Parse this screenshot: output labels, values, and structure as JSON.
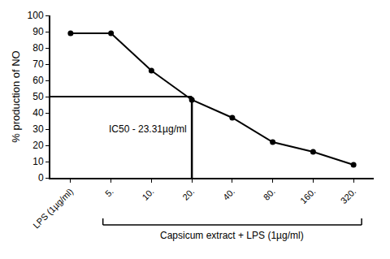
{
  "chart_data": {
    "type": "line",
    "categories": [
      "LPS (1µg/ml)",
      "5.",
      "10.",
      "20.",
      "40.",
      "80.",
      "160.",
      "320."
    ],
    "values": [
      89,
      89,
      66,
      48,
      37,
      22,
      16,
      8
    ],
    "color": "#000000",
    "marker": "circle",
    "line_style": "solid",
    "ylabel": "% production of NO",
    "ylim": [
      0,
      100
    ],
    "yticks": [
      0,
      10,
      20,
      30,
      40,
      50,
      60,
      70,
      80,
      90,
      100
    ],
    "grid": false,
    "annotations": [
      {
        "text": "IC50 - 23.31µg/ml"
      }
    ],
    "reference_lines": {
      "y": 50,
      "x": "20."
    },
    "group_label": {
      "text": "Capsicum extract + LPS (1µg/ml)",
      "from": "5.",
      "to": "320."
    }
  }
}
